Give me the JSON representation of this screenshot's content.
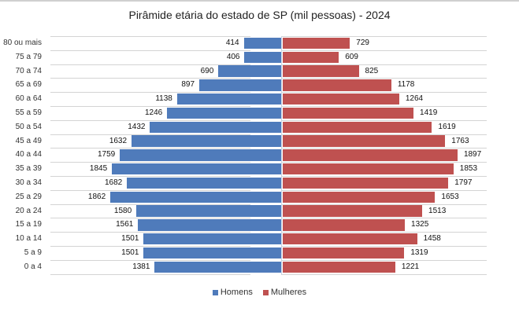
{
  "chart_data": {
    "type": "bar",
    "orientation": "horizontal",
    "subtype": "population-pyramid",
    "title": "Pirâmide etária do estado de SP (mil pessoas) - 2024",
    "xlabel": "",
    "ylabel": "",
    "categories": [
      "80 ou mais",
      "75 a 79",
      "70 a 74",
      "65 a 69",
      "60 a 64",
      "55 a 59",
      "50 a 54",
      "45 a 49",
      "40 a 44",
      "35 a 39",
      "30 a 34",
      "25 a 29",
      "20 a 24",
      "15 a 19",
      "10 a 14",
      "5 a 9",
      "0 a 4"
    ],
    "series": [
      {
        "name": "Homens",
        "color": "#4f7bbb",
        "side": "left",
        "values": [
          414,
          406,
          690,
          897,
          1138,
          1246,
          1432,
          1632,
          1759,
          1845,
          1682,
          1862,
          1580,
          1561,
          1501,
          1501,
          1381
        ]
      },
      {
        "name": "Mulheres",
        "color": "#bf5150",
        "side": "right",
        "values": [
          729,
          609,
          825,
          1178,
          1264,
          1419,
          1619,
          1763,
          1897,
          1853,
          1797,
          1653,
          1513,
          1325,
          1458,
          1319,
          1221
        ]
      }
    ],
    "data_labels": true,
    "grid": true,
    "legend_position": "bottom"
  },
  "legend": {
    "items": [
      {
        "label": "Homens",
        "color": "#4f7bbb"
      },
      {
        "label": "Mulheres",
        "color": "#bf5150"
      }
    ]
  }
}
